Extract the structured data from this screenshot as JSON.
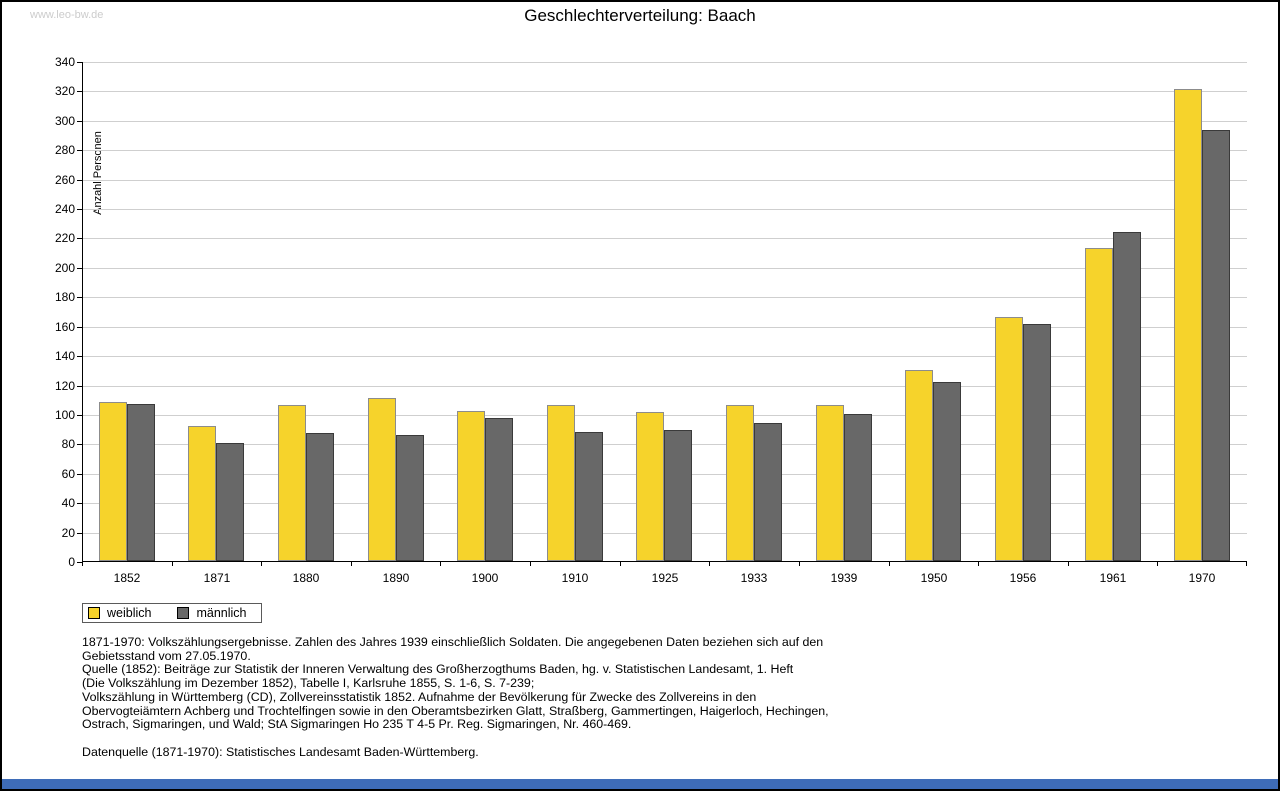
{
  "page": {
    "watermark": "www.leo-bw.de",
    "title": "Geschlechterverteilung: Baach",
    "footer_bar_color": "#3E6CB8"
  },
  "chart_data": {
    "type": "bar",
    "title": "Geschlechterverteilung: Baach",
    "xlabel": "",
    "ylabel": "Anzahl Personen",
    "ylim": [
      0,
      340
    ],
    "ytick_step": 20,
    "grid": true,
    "legend_position": "bottom-left",
    "categories": [
      "1852",
      "1871",
      "1880",
      "1890",
      "1900",
      "1910",
      "1925",
      "1933",
      "1939",
      "1950",
      "1956",
      "1961",
      "1970"
    ],
    "series": [
      {
        "name": "weiblich",
        "color": "#F6D32B",
        "border": "#8C8C8C",
        "values": [
          108,
          92,
          106,
          111,
          102,
          106,
          101,
          106,
          106,
          130,
          166,
          213,
          321
        ]
      },
      {
        "name": "männlich",
        "color": "#686868",
        "border": "#3A3A3A",
        "values": [
          107,
          80,
          87,
          86,
          97,
          88,
          89,
          94,
          100,
          122,
          161,
          224,
          293
        ]
      }
    ]
  },
  "notes": {
    "text": "1871-1970: Volkszählungsergebnisse. Zahlen des Jahres 1939 einschließlich Soldaten. Die angegebenen Daten beziehen sich auf den\nGebietsstand vom 27.05.1970.\nQuelle (1852): Beiträge zur Statistik der Inneren Verwaltung des Großherzogthums Baden, hg. v. Statistischen Landesamt, 1. Heft\n(Die Volkszählung im Dezember 1852), Tabelle I, Karlsruhe 1855, S. 1-6, S. 7-239;\nVolkszählung in Württemberg (CD), Zollvereinsstatistik 1852. Aufnahme der Bevölkerung für Zwecke des Zollvereins in den\nObervogteiämtern Achberg und Trochtelfingen sowie in den Oberamtsbezirken Glatt, Straßberg, Gammertingen, Haigerloch, Hechingen,\nOstrach, Sigmaringen, und Wald; StA Sigmaringen Ho 235 T 4-5 Pr. Reg. Sigmaringen, Nr. 460-469.\n\nDatenquelle (1871-1970): Statistisches Landesamt Baden-Württemberg."
  }
}
